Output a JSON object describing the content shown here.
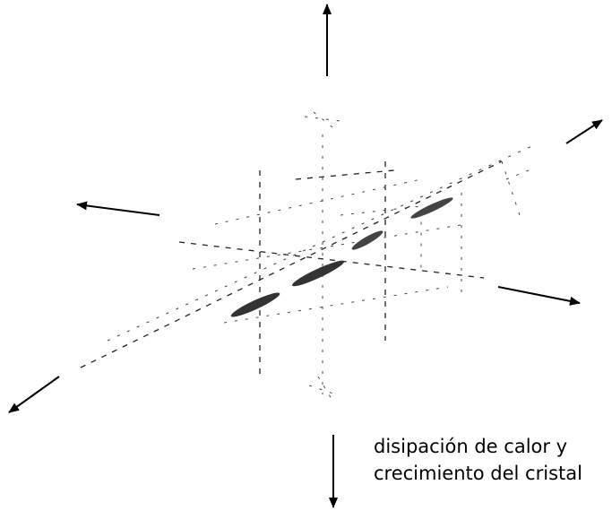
{
  "caption": {
    "lines": [
      "disipación de calor y",
      "crecimiento del cristal"
    ]
  }
}
